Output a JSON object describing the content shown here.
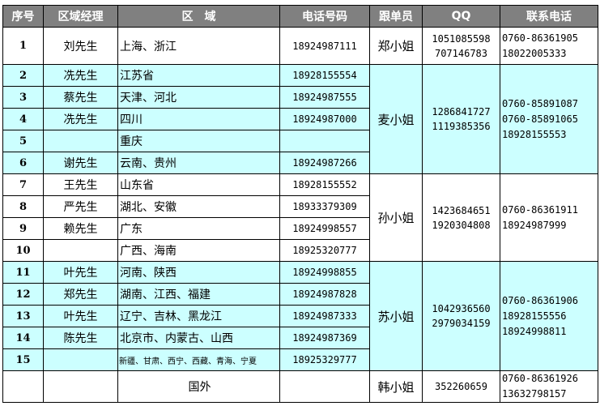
{
  "headers": [
    "序号",
    "区域经理",
    "区　域",
    "电话号码",
    "跟单员",
    "QQ",
    "联系电话"
  ],
  "colors": {
    "header_bg": "#808080",
    "highlight_bg": "#ccffff"
  },
  "groups": [
    {
      "follower": "郑小姐",
      "qq": [
        "1051085598",
        "707146783"
      ],
      "contact": [
        "0760-86361905",
        "18022005333"
      ],
      "highlight": false,
      "rows": [
        {
          "no": "1",
          "manager": "刘先生",
          "region": "上海、浙江",
          "phone": "18924987111"
        }
      ]
    },
    {
      "follower": "麦小姐",
      "qq": [
        "1286841727",
        "1119385356"
      ],
      "contact": [
        "0760-85891087",
        "0760-85891065",
        "18928155553"
      ],
      "highlight": true,
      "rows": [
        {
          "no": "2",
          "manager": "冼先生",
          "region": "江苏省",
          "phone": "18928155554"
        },
        {
          "no": "3",
          "manager": "蔡先生",
          "region": "天津、河北",
          "phone": "18924987555"
        },
        {
          "no": "4",
          "manager": "冼先生",
          "region": "四川",
          "phone": "18924987000"
        },
        {
          "no": "5",
          "manager": "",
          "region": "重庆",
          "phone": ""
        },
        {
          "no": "6",
          "manager": "谢先生",
          "region": "云南、贵州",
          "phone": "18924987266"
        }
      ]
    },
    {
      "follower": "孙小姐",
      "qq": [
        "1423684651",
        "1920304808"
      ],
      "contact": [
        "0760-86361911",
        "18924987999"
      ],
      "highlight": false,
      "rows": [
        {
          "no": "7",
          "manager": "王先生",
          "region": "山东省",
          "phone": "18928155552"
        },
        {
          "no": "8",
          "manager": "严先生",
          "region": "湖北、安徽",
          "phone": "18933379309"
        },
        {
          "no": "9",
          "manager": "赖先生",
          "region": "广东",
          "phone": "18924998557"
        },
        {
          "no": "10",
          "manager": "",
          "region": "广西、海南",
          "phone": "18925320777"
        }
      ]
    },
    {
      "follower": "苏小姐",
      "qq": [
        "1042936560",
        "2979034159"
      ],
      "contact": [
        "0760-86361906",
        "18928155556",
        "18924998811"
      ],
      "highlight": true,
      "rows": [
        {
          "no": "11",
          "manager": "叶先生",
          "region": "河南、陕西",
          "phone": "18924998855"
        },
        {
          "no": "12",
          "manager": "郑先生",
          "region": "湖南、江西、福建",
          "phone": "18924987828"
        },
        {
          "no": "13",
          "manager": "叶先生",
          "region": "辽宁、吉林、黑龙江",
          "phone": "18924987333"
        },
        {
          "no": "14",
          "manager": "陈先生",
          "region": "北京市、内蒙古、山西",
          "phone": "18924987369"
        },
        {
          "no": "15",
          "manager": "",
          "region": "新疆、甘肃、西宁、西藏、青海、宁夏",
          "phone": "18925329777"
        }
      ]
    },
    {
      "follower": "韩小姐",
      "qq": [
        "352260659"
      ],
      "contact": [
        "0760-86361926",
        "13632798157"
      ],
      "highlight": false,
      "rows": [
        {
          "no": "",
          "manager": "",
          "region": "国外",
          "phone": ""
        }
      ]
    }
  ]
}
